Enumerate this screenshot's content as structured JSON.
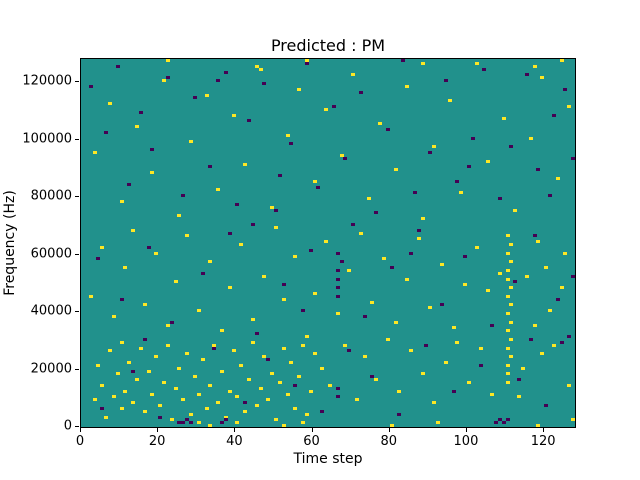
{
  "chart_data": {
    "type": "heatmap",
    "title": "Predicted : PM",
    "xlabel": "Time step",
    "ylabel": "Frequency (Hz)",
    "xlim": [
      0,
      128
    ],
    "ylim": [
      0,
      128000
    ],
    "xticks": [
      0,
      20,
      40,
      60,
      80,
      100,
      120
    ],
    "yticks": [
      0,
      20000,
      40000,
      60000,
      80000,
      100000,
      120000
    ],
    "grid": false,
    "legend": "none",
    "cell_width_steps": 1,
    "cell_height_hz": 1000,
    "colors": {
      "background": "#21918c",
      "high": "#fde725",
      "low": "#440154"
    },
    "cells_high": [
      [
        3,
        9000
      ],
      [
        4,
        21000
      ],
      [
        5,
        14000
      ],
      [
        6,
        3000
      ],
      [
        7,
        26000
      ],
      [
        8,
        10000
      ],
      [
        9,
        18000
      ],
      [
        10,
        6000
      ],
      [
        10,
        29000
      ],
      [
        11,
        12000
      ],
      [
        12,
        22000
      ],
      [
        13,
        8000
      ],
      [
        14,
        16000
      ],
      [
        15,
        27000
      ],
      [
        16,
        5000
      ],
      [
        17,
        19000
      ],
      [
        18,
        11000
      ],
      [
        19,
        24000
      ],
      [
        20,
        7000
      ],
      [
        21,
        15000
      ],
      [
        22,
        28000
      ],
      [
        23,
        2000
      ],
      [
        24,
        13000
      ],
      [
        25,
        20000
      ],
      [
        26,
        9000
      ],
      [
        27,
        25000
      ],
      [
        28,
        4000
      ],
      [
        29,
        17000
      ],
      [
        30,
        11000
      ],
      [
        31,
        23000
      ],
      [
        32,
        6000
      ],
      [
        33,
        14000
      ],
      [
        34,
        28000
      ],
      [
        35,
        8000
      ],
      [
        36,
        19000
      ],
      [
        37,
        3000
      ],
      [
        38,
        12000
      ],
      [
        39,
        26000
      ],
      [
        40,
        10000
      ],
      [
        41,
        21000
      ],
      [
        42,
        5000
      ],
      [
        43,
        16000
      ],
      [
        44,
        29000
      ],
      [
        45,
        7000
      ],
      [
        46,
        13000
      ],
      [
        47,
        24000
      ],
      [
        48,
        9000
      ],
      [
        49,
        18000
      ],
      [
        50,
        2000
      ],
      [
        51,
        15000
      ],
      [
        52,
        27000
      ],
      [
        53,
        11000
      ],
      [
        54,
        22000
      ],
      [
        55,
        6000
      ],
      [
        56,
        17000
      ],
      [
        57,
        28000
      ],
      [
        58,
        4000
      ],
      [
        59,
        12000
      ],
      [
        60,
        25000
      ],
      [
        2,
        45000
      ],
      [
        5,
        62000
      ],
      [
        8,
        38000
      ],
      [
        11,
        55000
      ],
      [
        13,
        68000
      ],
      [
        16,
        42000
      ],
      [
        19,
        60000
      ],
      [
        22,
        35000
      ],
      [
        24,
        50000
      ],
      [
        27,
        66000
      ],
      [
        30,
        40000
      ],
      [
        33,
        57000
      ],
      [
        36,
        33000
      ],
      [
        38,
        48000
      ],
      [
        41,
        63000
      ],
      [
        44,
        37000
      ],
      [
        47,
        52000
      ],
      [
        50,
        69000
      ],
      [
        52,
        44000
      ],
      [
        55,
        59000
      ],
      [
        58,
        31000
      ],
      [
        60,
        46000
      ],
      [
        63,
        64000
      ],
      [
        66,
        39000
      ],
      [
        69,
        54000
      ],
      [
        72,
        67000
      ],
      [
        75,
        43000
      ],
      [
        78,
        58000
      ],
      [
        81,
        36000
      ],
      [
        84,
        51000
      ],
      [
        87,
        65000
      ],
      [
        90,
        41000
      ],
      [
        93,
        56000
      ],
      [
        96,
        34000
      ],
      [
        99,
        49000
      ],
      [
        102,
        62000
      ],
      [
        105,
        47000
      ],
      [
        108,
        53000
      ],
      [
        3,
        95000
      ],
      [
        7,
        112000
      ],
      [
        10,
        78000
      ],
      [
        14,
        104000
      ],
      [
        18,
        88000
      ],
      [
        21,
        120000
      ],
      [
        25,
        73000
      ],
      [
        28,
        99000
      ],
      [
        32,
        115000
      ],
      [
        35,
        82000
      ],
      [
        39,
        108000
      ],
      [
        42,
        91000
      ],
      [
        46,
        124000
      ],
      [
        49,
        76000
      ],
      [
        53,
        101000
      ],
      [
        56,
        117000
      ],
      [
        60,
        85000
      ],
      [
        63,
        110000
      ],
      [
        67,
        94000
      ],
      [
        70,
        122000
      ],
      [
        74,
        79000
      ],
      [
        77,
        105000
      ],
      [
        81,
        89000
      ],
      [
        84,
        118000
      ],
      [
        88,
        72000
      ],
      [
        91,
        97000
      ],
      [
        95,
        113000
      ],
      [
        98,
        81000
      ],
      [
        102,
        126000
      ],
      [
        105,
        92000
      ],
      [
        109,
        107000
      ],
      [
        112,
        75000
      ],
      [
        116,
        100000
      ],
      [
        119,
        121000
      ],
      [
        123,
        86000
      ],
      [
        126,
        111000
      ],
      [
        110,
        15000
      ],
      [
        110,
        18000
      ],
      [
        110,
        21000
      ],
      [
        111,
        24000
      ],
      [
        110,
        27000
      ],
      [
        111,
        30000
      ],
      [
        110,
        33000
      ],
      [
        111,
        36000
      ],
      [
        110,
        39000
      ],
      [
        111,
        42000
      ],
      [
        110,
        45000
      ],
      [
        111,
        48000
      ],
      [
        110,
        51000
      ],
      [
        110,
        54000
      ],
      [
        111,
        57000
      ],
      [
        110,
        60000
      ],
      [
        111,
        63000
      ],
      [
        110,
        66000
      ],
      [
        114,
        20000
      ],
      [
        117,
        35000
      ],
      [
        120,
        55000
      ],
      [
        122,
        28000
      ],
      [
        124,
        48000
      ],
      [
        126,
        14000
      ],
      [
        118,
        64000
      ],
      [
        121,
        40000
      ],
      [
        125,
        60000
      ],
      [
        113,
        10000
      ],
      [
        115,
        52000
      ],
      [
        119,
        25000
      ],
      [
        62,
        20000
      ],
      [
        64,
        14000
      ],
      [
        68,
        28000
      ],
      [
        71,
        9000
      ],
      [
        73,
        24000
      ],
      [
        76,
        16000
      ],
      [
        79,
        30000
      ],
      [
        82,
        12000
      ],
      [
        85,
        26000
      ],
      [
        88,
        18000
      ],
      [
        91,
        8000
      ],
      [
        94,
        22000
      ],
      [
        97,
        29000
      ],
      [
        100,
        15000
      ],
      [
        103,
        27000
      ],
      [
        106,
        11000
      ],
      [
        22,
        127000
      ],
      [
        45,
        125000
      ],
      [
        58,
        127000
      ],
      [
        88,
        126000
      ],
      [
        117,
        125000
      ],
      [
        124,
        127000
      ],
      [
        30,
        1000
      ],
      [
        33,
        0
      ],
      [
        40,
        1000
      ],
      [
        52,
        0
      ],
      [
        57,
        1000
      ],
      [
        80,
        0
      ],
      [
        92,
        1000
      ],
      [
        118,
        0
      ],
      [
        127,
        2000
      ]
    ],
    "cells_low": [
      [
        2,
        118000
      ],
      [
        6,
        102000
      ],
      [
        9,
        125000
      ],
      [
        12,
        84000
      ],
      [
        15,
        109000
      ],
      [
        18,
        96000
      ],
      [
        22,
        121000
      ],
      [
        26,
        80000
      ],
      [
        29,
        114000
      ],
      [
        33,
        90000
      ],
      [
        37,
        123000
      ],
      [
        40,
        77000
      ],
      [
        43,
        106000
      ],
      [
        47,
        119000
      ],
      [
        51,
        87000
      ],
      [
        54,
        98000
      ],
      [
        58,
        126000
      ],
      [
        61,
        83000
      ],
      [
        65,
        111000
      ],
      [
        68,
        93000
      ],
      [
        72,
        116000
      ],
      [
        76,
        74000
      ],
      [
        79,
        103000
      ],
      [
        83,
        127000
      ],
      [
        86,
        81000
      ],
      [
        90,
        95000
      ],
      [
        94,
        120000
      ],
      [
        97,
        85000
      ],
      [
        101,
        100000
      ],
      [
        104,
        124000
      ],
      [
        108,
        79000
      ],
      [
        111,
        97000
      ],
      [
        115,
        122000
      ],
      [
        118,
        89000
      ],
      [
        122,
        108000
      ],
      [
        125,
        117000
      ],
      [
        127,
        93000
      ],
      [
        35,
        120000
      ],
      [
        50,
        75000
      ],
      [
        100,
        90000
      ],
      [
        121,
        80000
      ],
      [
        4,
        58000
      ],
      [
        10,
        44000
      ],
      [
        17,
        62000
      ],
      [
        23,
        36000
      ],
      [
        31,
        53000
      ],
      [
        38,
        67000
      ],
      [
        45,
        32000
      ],
      [
        52,
        49000
      ],
      [
        59,
        61000
      ],
      [
        66,
        45000
      ],
      [
        66,
        48000
      ],
      [
        66,
        51000
      ],
      [
        66,
        54000
      ],
      [
        67,
        57000
      ],
      [
        66,
        60000
      ],
      [
        73,
        38000
      ],
      [
        80,
        55000
      ],
      [
        87,
        68000
      ],
      [
        93,
        42000
      ],
      [
        99,
        59000
      ],
      [
        106,
        35000
      ],
      [
        112,
        50000
      ],
      [
        117,
        66000
      ],
      [
        123,
        44000
      ],
      [
        126,
        31000
      ],
      [
        70,
        70000
      ],
      [
        85,
        60000
      ],
      [
        16,
        30000
      ],
      [
        44,
        70000
      ],
      [
        57,
        40000
      ],
      [
        116,
        30000
      ],
      [
        5,
        6000
      ],
      [
        13,
        19000
      ],
      [
        20,
        3000
      ],
      [
        25,
        1000
      ],
      [
        26,
        1000
      ],
      [
        27,
        2000
      ],
      [
        28,
        1000
      ],
      [
        34,
        27000
      ],
      [
        36,
        1000
      ],
      [
        37,
        2000
      ],
      [
        42,
        8000
      ],
      [
        48,
        23000
      ],
      [
        55,
        14000
      ],
      [
        62,
        5000
      ],
      [
        66,
        10000
      ],
      [
        66,
        13000
      ],
      [
        69,
        26000
      ],
      [
        75,
        17000
      ],
      [
        82,
        4000
      ],
      [
        89,
        28000
      ],
      [
        96,
        12000
      ],
      [
        103,
        21000
      ],
      [
        107,
        1000
      ],
      [
        108,
        2000
      ],
      [
        109,
        1000
      ],
      [
        110,
        2000
      ],
      [
        113,
        16000
      ],
      [
        120,
        7000
      ],
      [
        124,
        29000
      ],
      [
        127,
        52000
      ]
    ]
  }
}
